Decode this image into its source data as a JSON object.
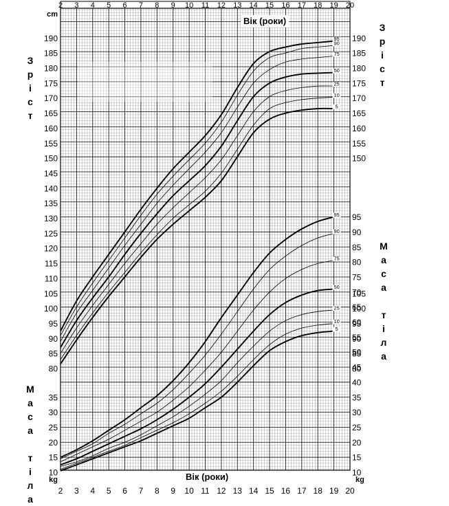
{
  "chart_data": {
    "type": "line",
    "x_ticks": [
      2,
      3,
      4,
      5,
      6,
      7,
      8,
      9,
      10,
      11,
      12,
      13,
      14,
      15,
      16,
      17,
      18,
      19,
      20
    ],
    "xlabel_top": "Вік (роки)",
    "xlabel_bottom": "Вік (роки)",
    "unit_height": "cm",
    "unit_weight": "kg",
    "left_label_height": "З\nр\nі\nс\nт",
    "right_label_height": "З\nр\nі\nс\nт",
    "left_label_weight": "М\nа\nс\nа\n\nт\nі\nл\nа",
    "right_label_weight": "М\nа\nс\nа\n\nт\nі\nл\nа",
    "height_ticks": [
      80,
      85,
      90,
      95,
      100,
      105,
      110,
      115,
      120,
      125,
      130,
      135,
      140,
      145,
      150,
      155,
      160,
      165,
      170,
      175,
      180,
      185,
      190
    ],
    "height_ticks_right": [
      80,
      85,
      90,
      95,
      100,
      105,
      150,
      155,
      160,
      165,
      170,
      175,
      180,
      185,
      190
    ],
    "weight_ticks_left": [
      10,
      15,
      20,
      25,
      30,
      35
    ],
    "weight_ticks_right": [
      10,
      15,
      20,
      25,
      30,
      35,
      40,
      45,
      50,
      55,
      60,
      65,
      70,
      75,
      80,
      85,
      90,
      95
    ],
    "ylim_height": [
      78,
      193
    ],
    "ylim_weight": [
      8,
      96
    ],
    "x": [
      2,
      3,
      4,
      5,
      6,
      7,
      8,
      9,
      10,
      11,
      12,
      13,
      14,
      15,
      16,
      17,
      18,
      19
    ],
    "height_series": [
      {
        "name": "95",
        "values": [
          92.5,
          102.5,
          110.5,
          118,
          125.5,
          133,
          140,
          146.5,
          152,
          157.5,
          164.5,
          173.5,
          181.5,
          185.5,
          187,
          188,
          188.5,
          189
        ]
      },
      {
        "name": "90",
        "values": [
          91,
          100.5,
          108.5,
          116,
          123.5,
          131,
          138,
          144,
          149.5,
          155,
          162,
          171,
          179,
          183.5,
          185,
          186.5,
          187,
          187.5
        ]
      },
      {
        "name": "75",
        "values": [
          89,
          98.5,
          106,
          113.5,
          121,
          128,
          135,
          141,
          146.5,
          152,
          158.5,
          167,
          175,
          179.5,
          182,
          183,
          183.5,
          184
        ]
      },
      {
        "name": "50",
        "values": [
          87,
          96,
          103.5,
          110.5,
          118,
          125,
          131.5,
          137.5,
          142.5,
          147.5,
          154,
          162.5,
          170.5,
          175,
          177,
          178,
          178.3,
          178.5
        ]
      },
      {
        "name": "25",
        "values": [
          85,
          93.5,
          101,
          108,
          115,
          121.5,
          128,
          133.5,
          138.5,
          143.5,
          149.5,
          157.5,
          165.5,
          170.5,
          172.5,
          173.5,
          174,
          174
        ]
      },
      {
        "name": "10",
        "values": [
          83,
          91,
          98.5,
          105.5,
          112,
          118.5,
          124.5,
          130,
          134.5,
          139,
          145,
          153,
          161,
          166.5,
          168.5,
          169.5,
          170,
          170.3
        ]
      },
      {
        "name": "5",
        "values": [
          81.5,
          89.5,
          97,
          104,
          110.5,
          117,
          123,
          128,
          132.5,
          137,
          142.5,
          150.5,
          158.5,
          163,
          165,
          166,
          166.5,
          166.5
        ]
      }
    ],
    "weight_series": [
      {
        "name": "95",
        "values": [
          15,
          17.5,
          20.5,
          24,
          27.5,
          31.5,
          35.5,
          40.5,
          46.5,
          53.5,
          61.5,
          69,
          76.5,
          83,
          87.5,
          91,
          93.5,
          95
        ]
      },
      {
        "name": "90",
        "values": [
          14.5,
          17,
          19.5,
          23,
          26,
          29.5,
          33,
          37.5,
          43,
          49,
          56,
          63.5,
          71,
          77.5,
          82,
          85.5,
          88,
          89.5
        ]
      },
      {
        "name": "75",
        "values": [
          13.5,
          16,
          18.5,
          21,
          24,
          27,
          30,
          34,
          38.5,
          44,
          50,
          57,
          64,
          70,
          74.5,
          77.5,
          79.5,
          80.5
        ]
      },
      {
        "name": "50",
        "values": [
          12.5,
          14.5,
          17,
          19.5,
          22,
          24.5,
          27.5,
          31,
          35,
          39.5,
          45,
          51,
          57,
          62.5,
          66.5,
          69,
          70.5,
          71
        ]
      },
      {
        "name": "25",
        "values": [
          12,
          13.5,
          15.5,
          18,
          20,
          22.5,
          25.5,
          28.5,
          32,
          36,
          40.5,
          46.5,
          52,
          57,
          60.5,
          62.5,
          63.5,
          64
        ]
      },
      {
        "name": "10",
        "values": [
          11,
          13,
          15,
          17,
          19,
          21.5,
          24,
          26.5,
          29.5,
          33,
          37,
          42,
          47.5,
          52.5,
          56,
          58,
          59,
          59.5
        ]
      },
      {
        "name": "5",
        "values": [
          10.5,
          12.5,
          14.5,
          16.5,
          18.5,
          20.5,
          23,
          25.5,
          28,
          31.5,
          35,
          40,
          45.5,
          50.5,
          53.5,
          55.5,
          56.5,
          57
        ]
      }
    ]
  }
}
